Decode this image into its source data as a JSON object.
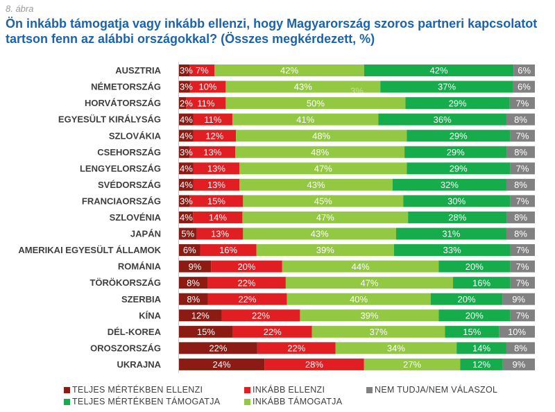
{
  "figure_label": "8. ábra",
  "chart_data": {
    "type": "bar",
    "orientation": "horizontal",
    "stacked": true,
    "title": "Ön inkább támogatja vagy inkább ellenzi, hogy Magyarország szoros partneri kapcsolatot tartson fenn az alábbi országokkal? (Összes megkérdezett, %)",
    "unit": "%",
    "xlim": [
      0,
      100
    ],
    "grid": false,
    "legend": "bottom",
    "categories": [
      "AUSZTRIA",
      "NÉMETORSZÁG",
      "HORVÁTORSZÁG",
      "EGYESÜLT KIRÁLYSÁG",
      "SZLOVÁKIA",
      "CSEHORSZÁG",
      "LENGYELORSZÁG",
      "SVÉDORSZÁG",
      "FRANCIAORSZÁG",
      "SZLOVÉNIA",
      "JAPÁN",
      "AMERIKAI EGYESÜLT ÁLLAMOK",
      "ROMÁNIA",
      "TÖRÖKORSZÁG",
      "SZERBIA",
      "KÍNA",
      "DÉL-KOREA",
      "OROSZORSZÁG",
      "UKRAJNA"
    ],
    "series": [
      {
        "name": "TELJES MÉRTÉKBEN ELLENZI",
        "color": "#8b1b13",
        "values": [
          3,
          3,
          2,
          4,
          4,
          3,
          4,
          4,
          3,
          4,
          5,
          6,
          9,
          8,
          8,
          12,
          15,
          22,
          24
        ]
      },
      {
        "name": "INKÁBB ELLENZI",
        "color": "#e11e21",
        "values": [
          7,
          10,
          11,
          11,
          12,
          13,
          13,
          13,
          15,
          14,
          13,
          16,
          20,
          22,
          22,
          22,
          22,
          22,
          28
        ]
      },
      {
        "name": "INKÁBB TÁMOGATJA",
        "color": "#93c842",
        "values": [
          42,
          43,
          50,
          41,
          48,
          48,
          47,
          43,
          45,
          47,
          43,
          39,
          44,
          47,
          40,
          39,
          37,
          34,
          27
        ]
      },
      {
        "name": "TELJES MÉRTÉKBEN TÁMOGATJA",
        "color": "#17ac4b",
        "values": [
          42,
          37,
          29,
          36,
          29,
          29,
          29,
          32,
          30,
          28,
          31,
          33,
          20,
          16,
          20,
          20,
          15,
          14,
          12
        ]
      },
      {
        "name": "NEM TUDJA/NEM VÁLASZOL",
        "color": "#818181",
        "values": [
          6,
          6,
          7,
          8,
          7,
          8,
          7,
          8,
          7,
          8,
          8,
          7,
          7,
          7,
          9,
          7,
          10,
          8,
          9
        ]
      }
    ],
    "annotations": [
      {
        "text": "3%",
        "category": "NÉMETORSZÁG"
      }
    ]
  }
}
